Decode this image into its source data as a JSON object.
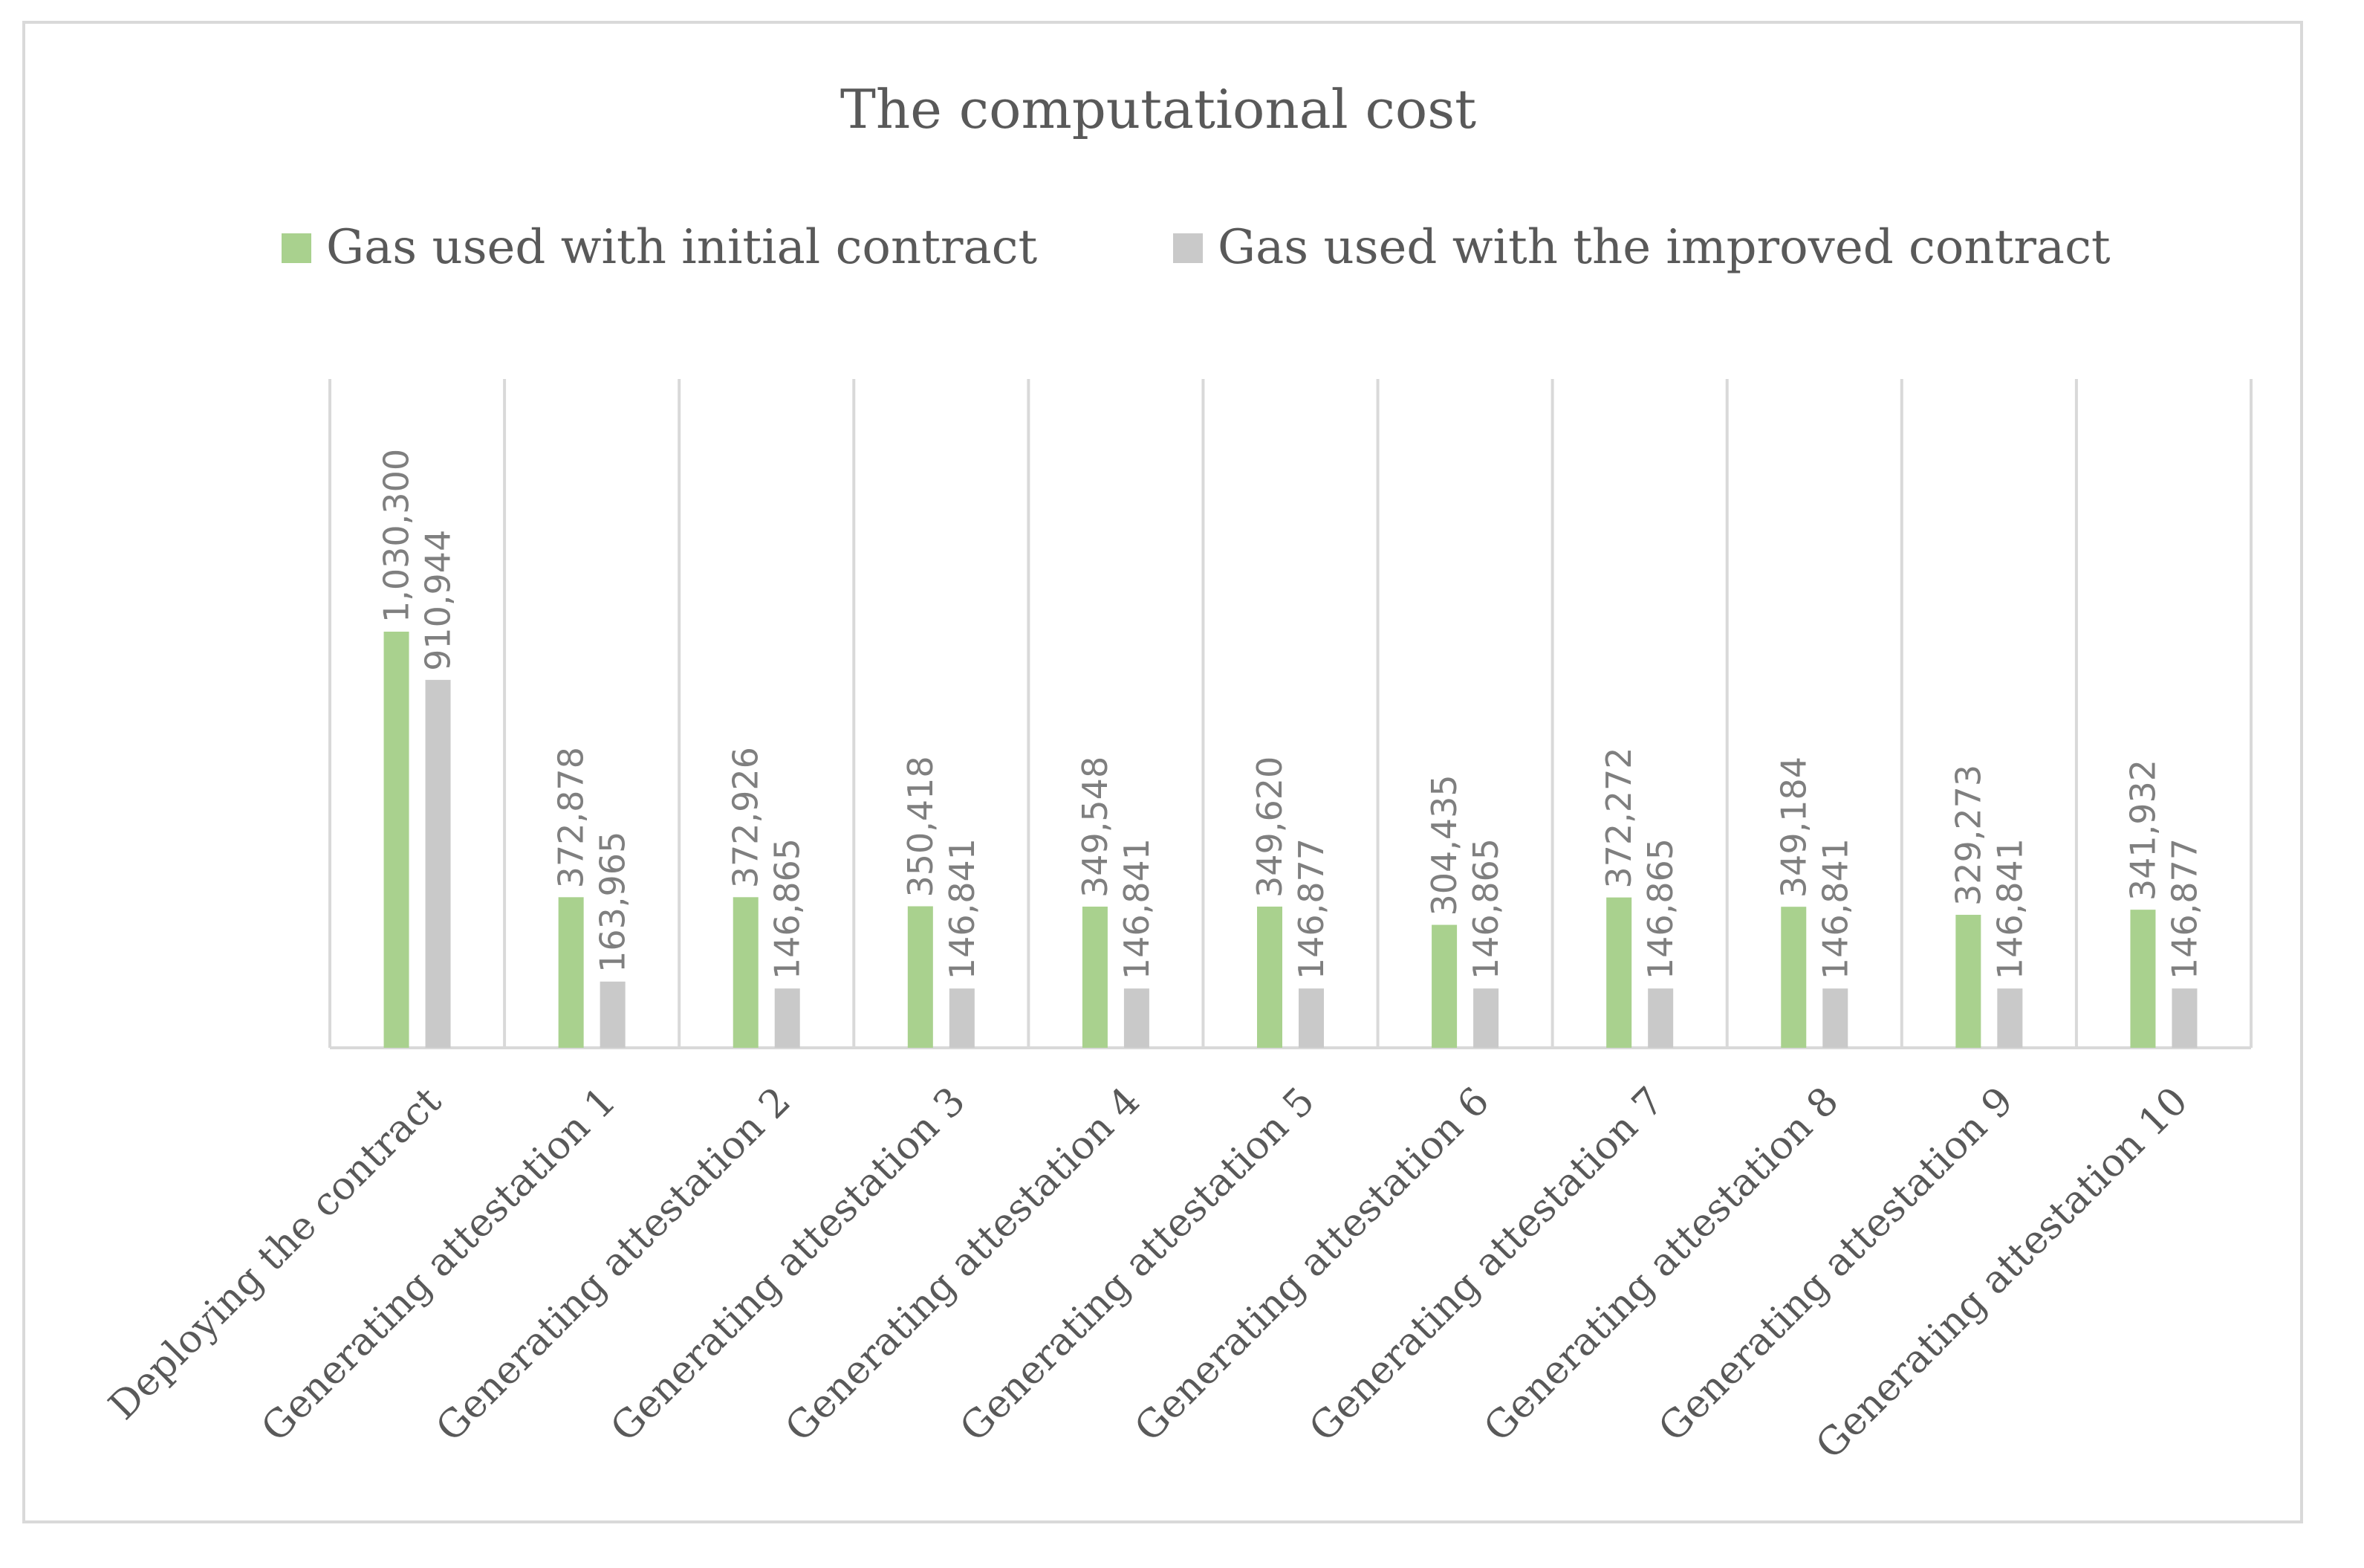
{
  "chart_data": {
    "type": "bar",
    "title": "The computational cost",
    "categories": [
      "Deploying the contract",
      "Generating attestation 1",
      "Generating attestation 2",
      "Generating attestation 3",
      "Generating attestation 4",
      "Generating attestation 5",
      "Generating attestation 6",
      "Generating attestation 7",
      "Generating attestation 8",
      "Generating attestation 9",
      "Generating attestation 10"
    ],
    "series": [
      {
        "name": "Gas used with initial contract",
        "color": "#a9d18e",
        "values": [
          1030300,
          372878,
          372926,
          350418,
          349548,
          349620,
          304435,
          372272,
          349184,
          329273,
          341932
        ],
        "labels": [
          "1,030,300",
          "372,878",
          "372,926",
          "350,418",
          "349,548",
          "349,620",
          "304,435",
          "372,272",
          "349,184",
          "329,273",
          "341,932"
        ]
      },
      {
        "name": "Gas used with the improved contract",
        "color": "#c9c9c9",
        "values": [
          910944,
          163965,
          146865,
          146841,
          146841,
          146877,
          146865,
          146865,
          146841,
          146841,
          146877
        ],
        "labels": [
          "910,944",
          "163,965",
          "146,865",
          "146,841",
          "146,841",
          "146,877",
          "146,865",
          "146,865",
          "146,841",
          "146,841",
          "146,877"
        ]
      }
    ],
    "xlabel": "",
    "ylabel": "",
    "ylim": [
      0,
      1200000
    ],
    "legend_position": "top",
    "grid": "vertical"
  }
}
